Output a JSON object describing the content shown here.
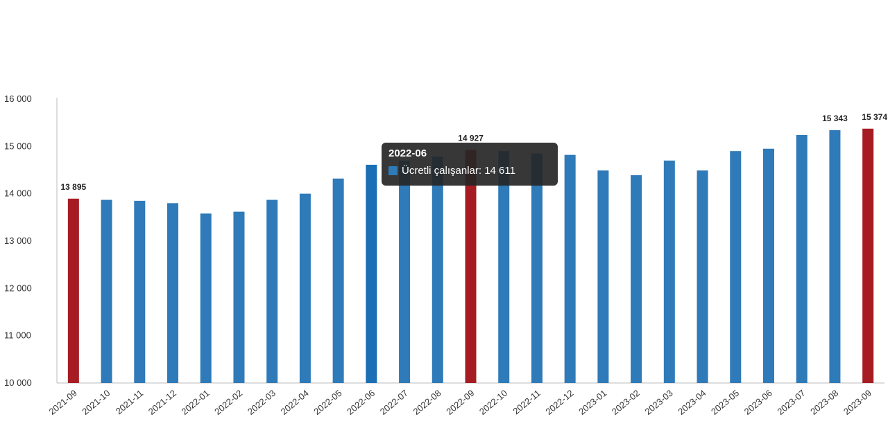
{
  "chart_data": {
    "type": "bar",
    "categories": [
      "2021-09",
      "2021-10",
      "2021-11",
      "2021-12",
      "2022-01",
      "2022-02",
      "2022-03",
      "2022-04",
      "2022-05",
      "2022-06",
      "2022-07",
      "2022-08",
      "2022-09",
      "2022-10",
      "2022-11",
      "2022-12",
      "2023-01",
      "2023-02",
      "2023-03",
      "2023-04",
      "2023-05",
      "2023-06",
      "2023-07",
      "2023-08",
      "2023-09"
    ],
    "series": [
      {
        "name": "Ücretli çalışanlar",
        "values": [
          13895,
          13870,
          13850,
          13800,
          13580,
          13620,
          13870,
          14000,
          14320,
          14611,
          14700,
          14780,
          14927,
          14900,
          14850,
          14820,
          14490,
          14390,
          14700,
          14490,
          14900,
          14950,
          15240,
          15343,
          15374
        ]
      }
    ],
    "highlighted_categories": [
      "2021-09",
      "2022-09",
      "2023-09"
    ],
    "data_labels": [
      {
        "category": "2021-09",
        "text": "13 895"
      },
      {
        "category": "2022-09",
        "text": "14 927"
      },
      {
        "category": "2023-08",
        "text": "15 343"
      },
      {
        "category": "2023-09",
        "text": "15 374"
      }
    ],
    "y_ticks": [
      "10 000",
      "11 000",
      "12 000",
      "13 000",
      "14 000",
      "15 000",
      "16 000"
    ],
    "ylim": [
      10000,
      16000
    ],
    "title": "",
    "xlabel": "",
    "ylabel": "",
    "grid": false,
    "colors": {
      "bar": "#2f7ab8",
      "highlight": "#a61c22",
      "hovered": "#1a6fb5"
    }
  },
  "tooltip": {
    "title": "2022-06",
    "series_label": "Ücretli çalışanlar: 14 611",
    "swatch_color": "#2f7ab8"
  }
}
